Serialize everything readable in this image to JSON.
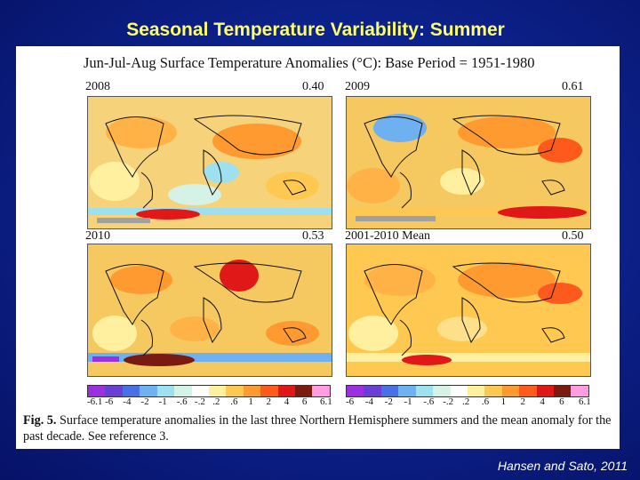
{
  "slide": {
    "title": "Seasonal Temperature Variability: Summer",
    "credit": "Hansen and Sato, 2011"
  },
  "figure": {
    "header": "Jun-Jul-Aug Surface Temperature Anomalies (°C): Base Period = 1951-1980",
    "maps": [
      {
        "label": "2008",
        "value": "0.40"
      },
      {
        "label": "2009",
        "value": "0.61"
      },
      {
        "label": "2010",
        "value": "0.53"
      },
      {
        "label": "2001-2010 Mean",
        "value": "0.50"
      }
    ],
    "colorbar": {
      "left_labels": [
        "-6.1",
        "-6",
        "-4",
        "-2",
        "-1",
        "-.6",
        "-.2",
        ".2",
        ".6",
        "1",
        "2",
        "4",
        "6",
        "6.1"
      ],
      "right_labels": [
        "-6",
        "-4",
        "-2",
        "-1",
        "-.6",
        "-.2",
        ".2",
        ".6",
        "1",
        "2",
        "4",
        "6",
        "6.1"
      ],
      "colors": [
        "#9b30e0",
        "#6a3fd8",
        "#4a70e8",
        "#6fb0f0",
        "#9fe0f0",
        "#d4f2e6",
        "#ffffff",
        "#fff0a0",
        "#ffc850",
        "#ff9a30",
        "#ff5a1e",
        "#e01818",
        "#7a1a10",
        "#ff9de0"
      ]
    },
    "caption_lead": "Fig. 5.",
    "caption_text": "Surface temperature anomalies in the last three Northern Hemisphere summers and the mean anomaly for the past decade. See reference 3."
  }
}
